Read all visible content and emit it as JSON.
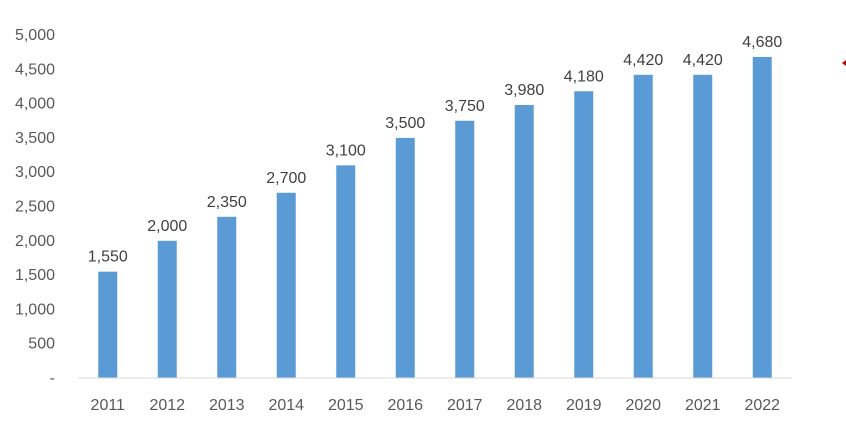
{
  "chart_data": {
    "type": "bar",
    "title": "",
    "xlabel": "",
    "ylabel": "",
    "categories": [
      "2011",
      "2012",
      "2013",
      "2014",
      "2015",
      "2016",
      "2017",
      "2018",
      "2019",
      "2020",
      "2021",
      "2022"
    ],
    "values": [
      1550,
      2000,
      2350,
      2700,
      3100,
      3500,
      3750,
      3980,
      4180,
      4420,
      4420,
      4680
    ],
    "data_labels": [
      "1,550",
      "2,000",
      "2,350",
      "2,700",
      "3,100",
      "3,500",
      "3,750",
      "3,980",
      "4,180",
      "4,420",
      "4,420",
      "4,680"
    ],
    "ylim": [
      0,
      5000
    ],
    "yticks": [
      0,
      500,
      1000,
      1500,
      2000,
      2500,
      3000,
      3500,
      4000,
      4500,
      5000
    ],
    "ytick_labels": [
      "-",
      "500",
      "1,000",
      "1,500",
      "2,000",
      "2,500",
      "3,000",
      "3,500",
      "4,000",
      "4,500",
      "5,000"
    ],
    "grid": false,
    "legend": "none",
    "bar_color": "#5B9BD5",
    "axis_color": "#D9D9D9",
    "text_color": "#595959"
  }
}
